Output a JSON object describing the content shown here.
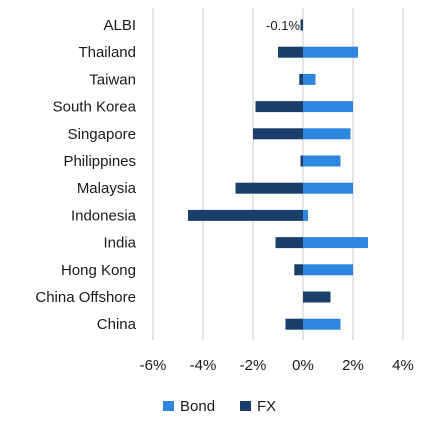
{
  "chart_data": {
    "type": "bar",
    "orientation": "horizontal",
    "categories": [
      "ALBI",
      "Thailand",
      "Taiwan",
      "South Korea",
      "Singapore",
      "Philippines",
      "Malaysia",
      "Indonesia",
      "India",
      "Hong Kong",
      "China Offshore",
      "China"
    ],
    "series": [
      {
        "name": "Bond",
        "color": "#2e86de",
        "values": [
          0.0,
          2.2,
          0.5,
          2.0,
          1.9,
          1.5,
          2.0,
          0.2,
          2.6,
          2.0,
          0.9,
          1.5
        ]
      },
      {
        "name": "FX",
        "color": "#1b3f6b",
        "values": [
          -0.1,
          -1.0,
          -0.15,
          -1.9,
          -2.0,
          -0.1,
          -2.7,
          -4.6,
          -1.1,
          -0.35,
          1.1,
          -0.7
        ]
      }
    ],
    "xlim": [
      -6,
      4
    ],
    "xticks": [
      "-6%",
      "-4%",
      "-2%",
      "0%",
      "2%",
      "4%"
    ],
    "xtick_values": [
      -6,
      -4,
      -2,
      0,
      2,
      4
    ],
    "grid": "vertical",
    "legend": "bottom",
    "annotations": [
      {
        "category": "ALBI",
        "text": "-0.1%"
      }
    ]
  }
}
